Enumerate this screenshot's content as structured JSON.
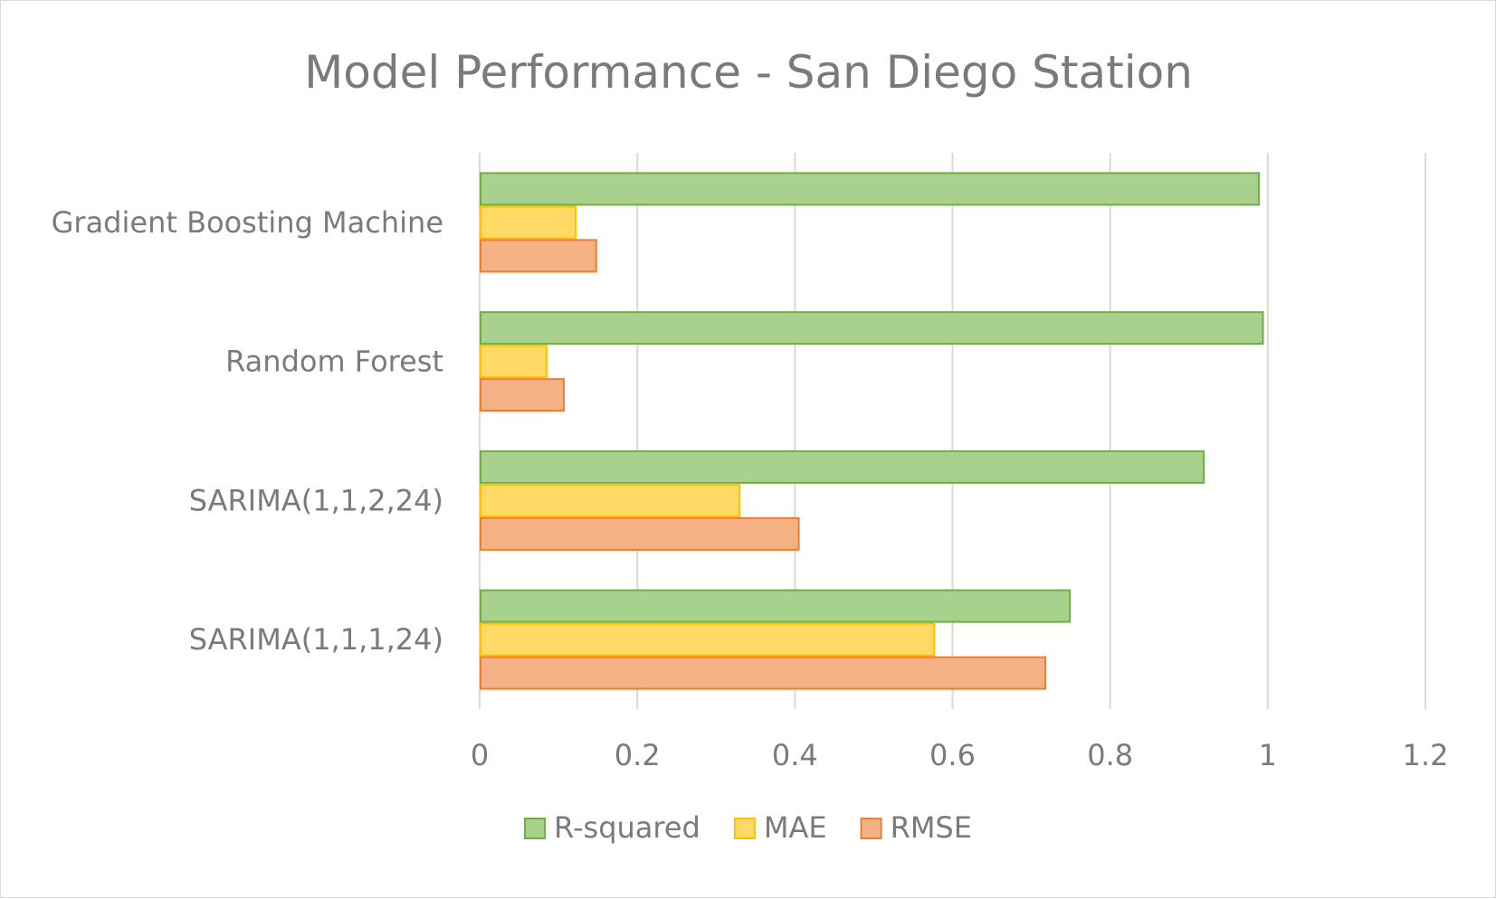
{
  "chart_data": {
    "type": "bar",
    "orientation": "horizontal",
    "title": "Model Performance - San Diego Station",
    "xlabel": "",
    "ylabel": "",
    "categories": [
      "Gradient Boosting Machine",
      "Random Forest",
      "SARIMA(1,1,2,24)",
      "SARIMA(1,1,1,24)"
    ],
    "series": [
      {
        "name": "R-squared",
        "values": [
          0.99,
          0.995,
          0.92,
          0.75
        ],
        "fill": "#a9d18e",
        "stroke": "#70ad47"
      },
      {
        "name": "MAE",
        "values": [
          0.123,
          0.086,
          0.331,
          0.578
        ],
        "fill": "#ffd966",
        "stroke": "#ffc000"
      },
      {
        "name": "RMSE",
        "values": [
          0.149,
          0.108,
          0.406,
          0.719
        ],
        "fill": "#f4b183",
        "stroke": "#ed7d31"
      }
    ],
    "xlim": [
      0,
      1.2
    ],
    "xticks": [
      "0",
      "0.2",
      "0.4",
      "0.6",
      "0.8",
      "1",
      "1.2"
    ],
    "grid": true,
    "legend_position": "bottom"
  },
  "colors": {
    "grid": "#d9d9d9",
    "text": "#7a7a7a"
  }
}
